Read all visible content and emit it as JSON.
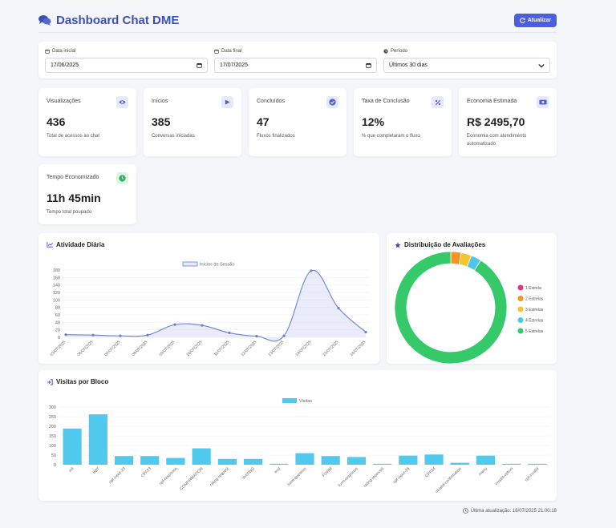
{
  "header": {
    "title": "Dashboard Chat DME",
    "refresh_label": "Atualizar"
  },
  "filters": {
    "start_label": "Data inicial",
    "start_value": "17/06/2025",
    "end_label": "Data final",
    "end_value": "17/07/2025",
    "period_label": "Período",
    "period_value": "Últimos 30 dias"
  },
  "metrics": [
    {
      "title": "Visualizações",
      "value": "436",
      "desc": "Total de acessos ao chat",
      "icon": "eye-icon"
    },
    {
      "title": "Inícios",
      "value": "385",
      "desc": "Conversas iniciadas",
      "icon": "play-icon"
    },
    {
      "title": "Concluídos",
      "value": "47",
      "desc": "Fluxos finalizados",
      "icon": "check-circle-icon"
    },
    {
      "title": "Taxa de Conclusão",
      "value": "12%",
      "desc": "% que completaram o fluxo",
      "icon": "percent-icon"
    },
    {
      "title": "Economia Estimada",
      "value": "R$ 2495,70",
      "desc": "Economia com atendimento automatizado",
      "icon": "money-icon"
    },
    {
      "title": "Tempo Economizado",
      "value": "11h 45min",
      "desc": "Tempo total poupado",
      "icon": "clock-icon"
    }
  ],
  "colors": {
    "accent": "#4a5ee0",
    "line": "#6b7fd7",
    "bar": "#4fc9ee",
    "donut": [
      "#e0357a",
      "#f7941d",
      "#f6c431",
      "#4ec6e8",
      "#35c96a"
    ]
  },
  "panels": {
    "activity_title": "Atividade Diária",
    "ratings_title": "Distribuição de Avaliações",
    "blocks_title": "Visitas por Bloco"
  },
  "chart_data": [
    {
      "type": "line",
      "legend": "Inícios de Sessão",
      "x": [
        "03/07/2025",
        "06/07/2025",
        "07/07/2025",
        "08/07/2025",
        "09/07/2025",
        "10/07/2025",
        "11/07/2025",
        "12/07/2025",
        "13/07/2025",
        "14/07/2025",
        "15/07/2025",
        "16/07/2025"
      ],
      "values": [
        7,
        6,
        4,
        6,
        34,
        32,
        12,
        3,
        4,
        178,
        78,
        14
      ],
      "ylim": [
        0,
        180
      ],
      "yticks": [
        0,
        20,
        40,
        60,
        80,
        100,
        120,
        140,
        160,
        180
      ],
      "grid": true,
      "legend_position": "top"
    },
    {
      "type": "pie",
      "labels": [
        "1 Estrela",
        "2 Estrelas",
        "3 Estrelas",
        "4 Estrelas",
        "5 Estrelas"
      ],
      "values": [
        0,
        3,
        3,
        3,
        91
      ],
      "legend_position": "right"
    },
    {
      "type": "bar",
      "legend": "Visitas",
      "categories": [
        "init",
        "INIT",
        "npf-input-23",
        "CPF23",
        "npf-response",
        "CONFIRMATION",
        "rating-request",
        "RATING",
        "end",
        "form-question",
        "FORM",
        "form-response",
        "rating-received",
        "npf-input-24",
        "CPF24",
        "invalid-confirmation",
        "menu",
        "invalid-option",
        "cpf-invalid"
      ],
      "values": [
        188,
        262,
        45,
        45,
        35,
        85,
        30,
        30,
        5,
        60,
        45,
        40,
        5,
        47,
        53,
        10,
        47,
        5,
        5
      ],
      "ylim": [
        0,
        300
      ],
      "yticks": [
        0,
        50,
        100,
        150,
        200,
        250,
        300
      ],
      "grid": true,
      "legend_position": "top"
    }
  ],
  "footer": {
    "last_update": "Última atualização: 16/07/2025 21:00:18"
  }
}
